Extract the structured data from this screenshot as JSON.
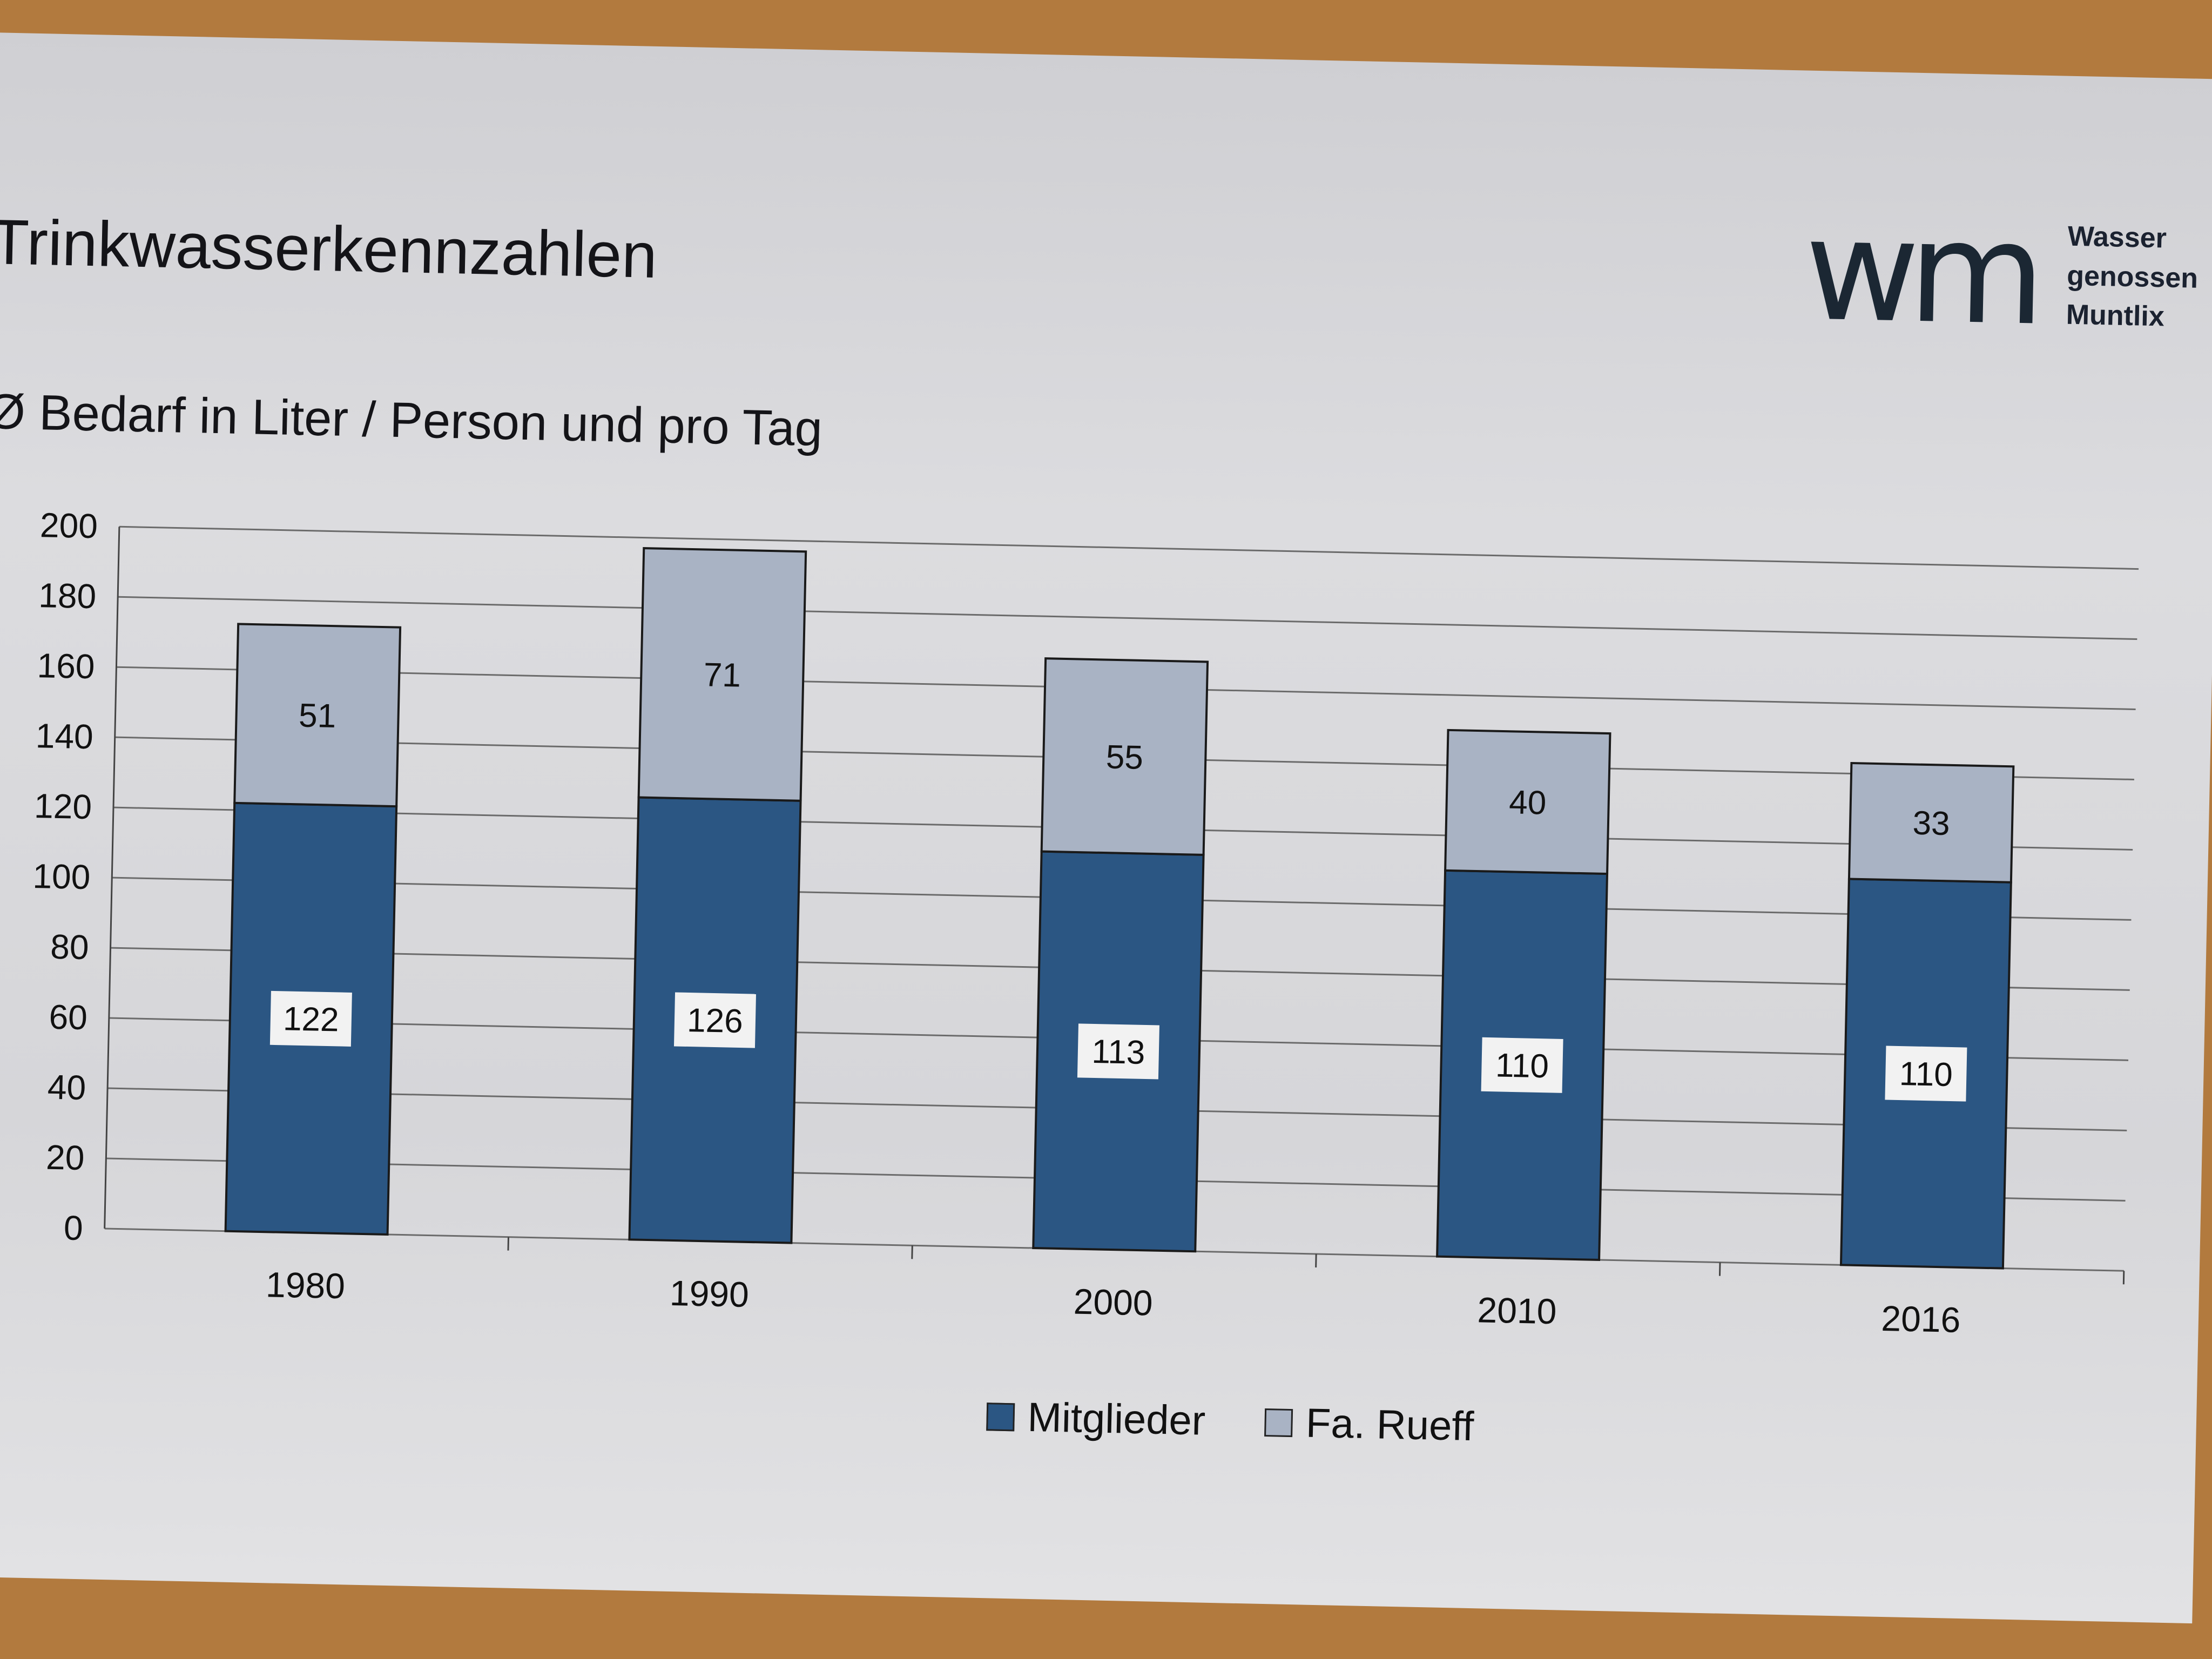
{
  "title": "Trinkwasserkennzahlen",
  "subtitle": "Ø Bedarf in Liter / Person und pro Tag",
  "logo": {
    "mark": "wm",
    "lines": [
      "Wasser",
      "genossen",
      "Muntlix"
    ]
  },
  "colors": {
    "mitglieder": "#2b5683",
    "rueff": "#a9b3c4",
    "grid": "#6b6b6b"
  },
  "chart_data": {
    "type": "bar",
    "stacked": true,
    "categories": [
      "1980",
      "1990",
      "2000",
      "2010",
      "2016"
    ],
    "series": [
      {
        "name": "Mitglieder",
        "values": [
          122,
          126,
          113,
          110,
          110
        ]
      },
      {
        "name": "Fa. Rueff",
        "values": [
          51,
          71,
          55,
          40,
          33
        ]
      }
    ],
    "ylim": [
      0,
      200
    ],
    "yticks": [
      "0",
      "20",
      "40",
      "60",
      "80",
      "100",
      "120",
      "140",
      "160",
      "180",
      "200"
    ],
    "grid": true,
    "legend": "bottom",
    "data_labels": true
  }
}
